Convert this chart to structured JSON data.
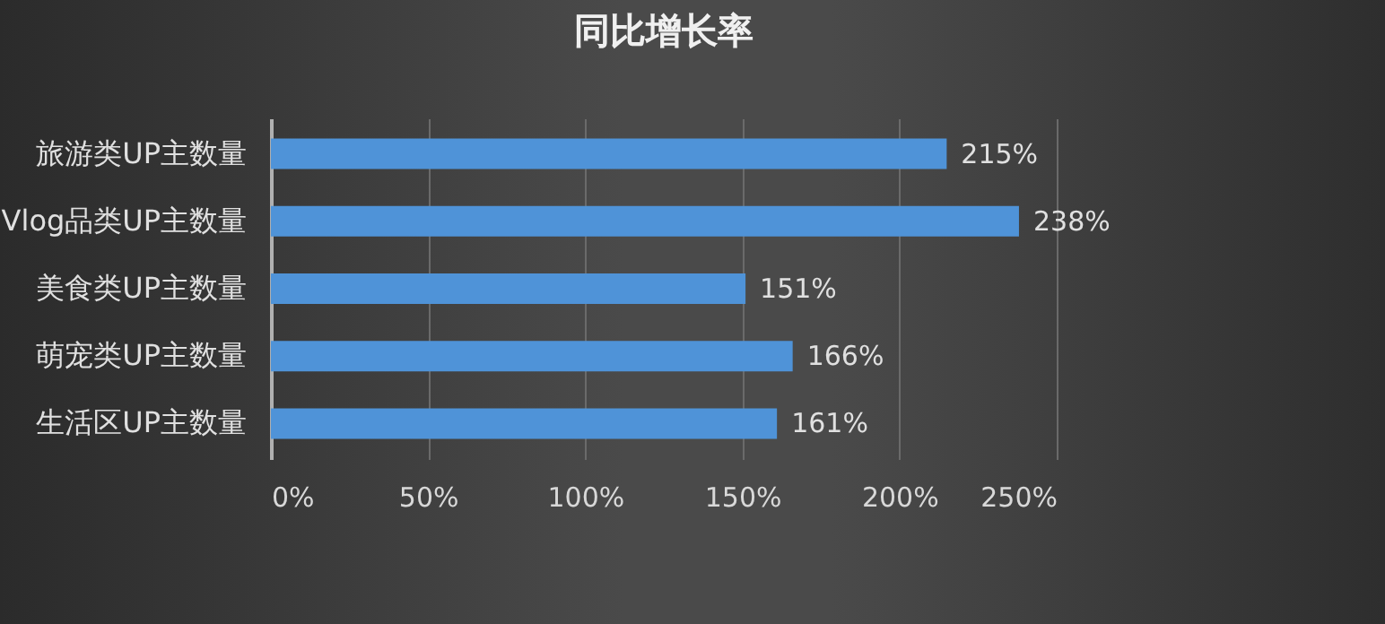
{
  "chart_data": {
    "type": "bar",
    "orientation": "horizontal",
    "title": "同比增长率",
    "categories": [
      "旅游类UP主数量",
      "Vlog品类UP主数量",
      "美食类UP主数量",
      "萌宠类UP主数量",
      "生活区UP主数量"
    ],
    "values": [
      215,
      238,
      151,
      166,
      161
    ],
    "value_labels": [
      "215%",
      "238%",
      "151%",
      "166%",
      "161%"
    ],
    "color": "#4f93d8",
    "xlim": [
      0,
      250
    ],
    "xticks": [
      {
        "value": 0,
        "label": "0%"
      },
      {
        "value": 50,
        "label": "50%"
      },
      {
        "value": 100,
        "label": "100%"
      },
      {
        "value": 150,
        "label": "150%"
      },
      {
        "value": 200,
        "label": "200%"
      },
      {
        "value": 250,
        "label": "250%"
      }
    ],
    "grid": "x"
  }
}
